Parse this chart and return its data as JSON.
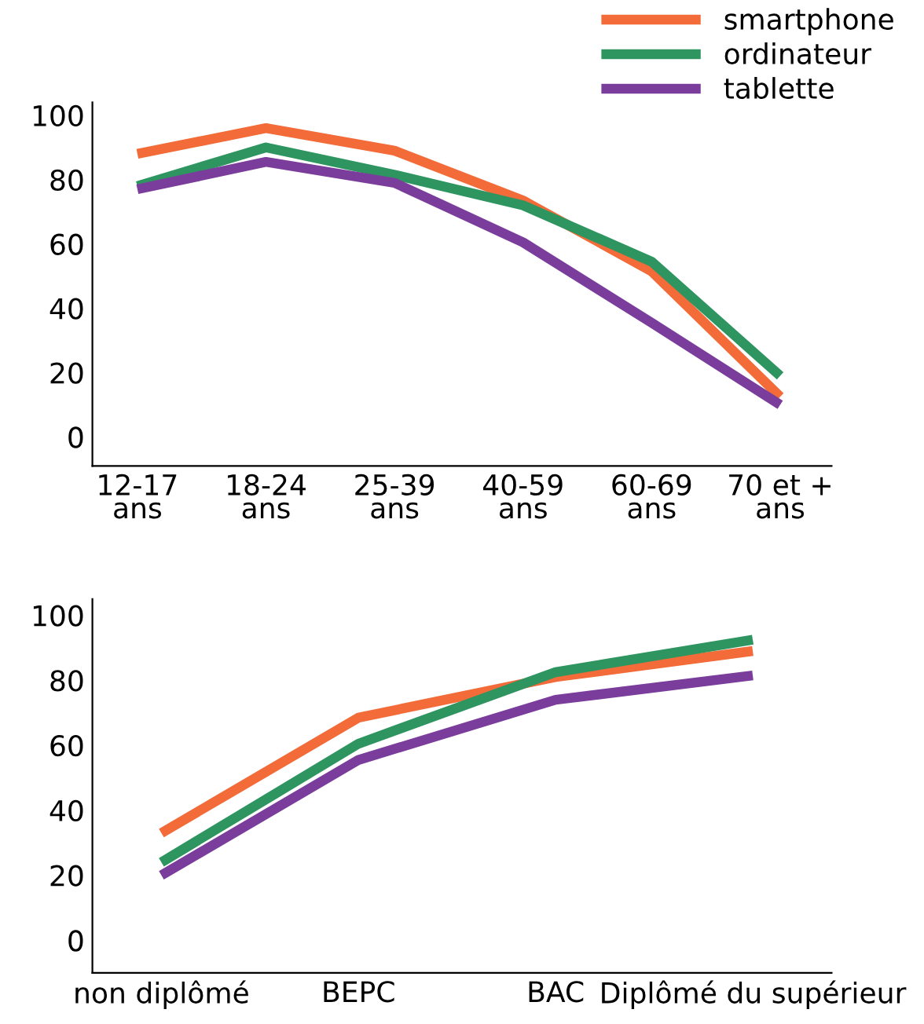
{
  "chart_data": [
    {
      "type": "line",
      "categories": [
        "12-17\nans",
        "18-24\nans",
        "25-39\nans",
        "40-59\nans",
        "60-69\nans",
        "70 et +\nans"
      ],
      "ylim": [
        -9,
        104
      ],
      "yticks": [
        0,
        20,
        40,
        60,
        80,
        100
      ],
      "grid": false,
      "legend": "top right",
      "series": [
        {
          "name": "smartphone",
          "color": "#f26b38",
          "values": [
            88,
            96,
            89,
            73.5,
            51.5,
            12.5
          ]
        },
        {
          "name": "ordinateur",
          "color": "#2e9560",
          "values": [
            78,
            90,
            81.5,
            72,
            54.5,
            19
          ]
        },
        {
          "name": "tablette",
          "color": "#7b3d9b",
          "values": [
            77,
            85.5,
            79,
            60.5,
            35.5,
            10
          ]
        }
      ]
    },
    {
      "type": "line",
      "categories": [
        "non diplômé",
        "BEPC",
        "BAC",
        "Diplômé du supérieur"
      ],
      "ylim": [
        -10,
        105
      ],
      "yticks": [
        0,
        20,
        40,
        60,
        80,
        100
      ],
      "grid": false,
      "series": [
        {
          "color": "#f26b38",
          "values": [
            33,
            68.5,
            81,
            89
          ]
        },
        {
          "color": "#2e9560",
          "values": [
            24,
            60.5,
            82.5,
            92.5
          ]
        },
        {
          "color": "#7b3d9b",
          "values": [
            20,
            55.5,
            74,
            81.5
          ]
        }
      ]
    }
  ]
}
